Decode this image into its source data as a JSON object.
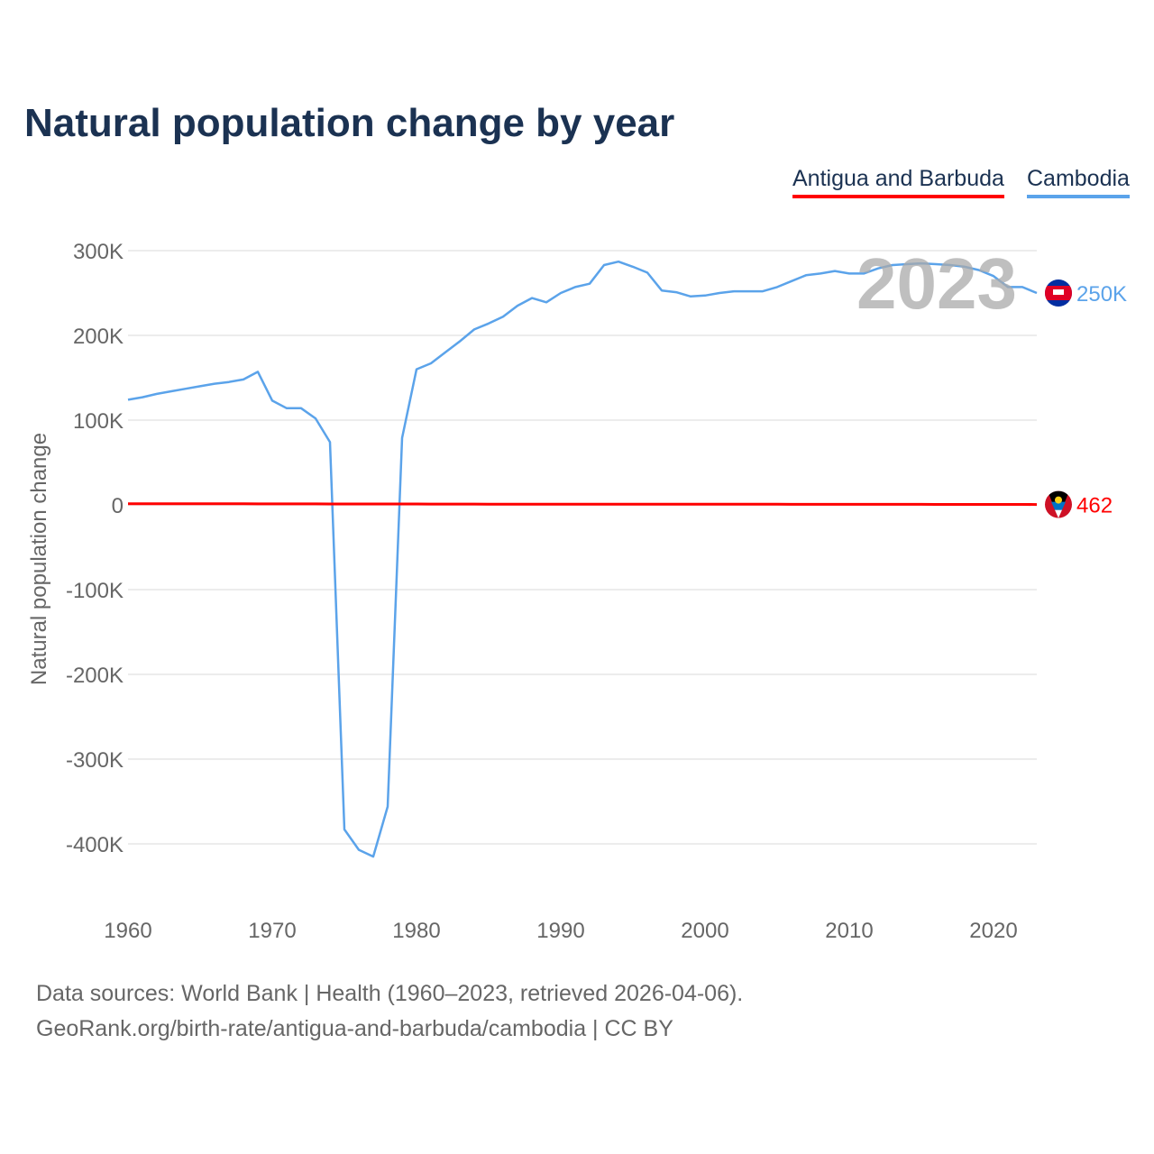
{
  "title": "Natural population change by year",
  "footer": {
    "line1": "Data sources: World Bank | Health (1960–2023, retrieved 2026-04-06).",
    "line2": "GeoRank.org/birth-rate/antigua-and-barbuda/cambodia | CC BY"
  },
  "chart_data": {
    "type": "line",
    "title": "Natural population change by year",
    "ylabel": "Natural population change",
    "xlabel": "",
    "ylim": [
      -450000,
      310000
    ],
    "xlim": [
      1960,
      2023
    ],
    "yticks": [
      300000,
      200000,
      100000,
      0,
      -100000,
      -200000,
      -300000,
      -400000
    ],
    "ytick_labels": [
      "300K",
      "200K",
      "100K",
      "0",
      "-100K",
      "-200K",
      "-300K",
      "-400K"
    ],
    "xticks": [
      1960,
      1970,
      1980,
      1990,
      2000,
      2010,
      2020
    ],
    "xtick_labels": [
      "1960",
      "1970",
      "1980",
      "1990",
      "2000",
      "2010",
      "2020"
    ],
    "grid": true,
    "legend_position": "top-right",
    "year_watermark": "2023",
    "series": [
      {
        "name": "Antigua and Barbuda",
        "color": "#ff0000",
        "end_label": "462",
        "flag": "antigua-flag-icon",
        "values": [
          1300,
          1320,
          1330,
          1340,
          1330,
          1320,
          1300,
          1280,
          1250,
          1220,
          1200,
          1180,
          1150,
          1130,
          1110,
          1100,
          1090,
          1080,
          1060,
          1050,
          1020,
          990,
          960,
          940,
          920,
          900,
          890,
          880,
          870,
          860,
          850,
          840,
          830,
          820,
          810,
          800,
          790,
          780,
          770,
          760,
          750,
          740,
          730,
          720,
          710,
          700,
          690,
          680,
          670,
          660,
          650,
          640,
          630,
          620,
          600,
          590,
          580,
          560,
          550,
          530,
          520,
          500,
          480,
          462
        ]
      },
      {
        "name": "Cambodia",
        "color": "#5ba3ea",
        "end_label": "250K",
        "flag": "cambodia-flag-icon",
        "values": [
          124000,
          127000,
          131000,
          134000,
          137000,
          140000,
          143000,
          145000,
          148000,
          157000,
          123000,
          114000,
          114000,
          102000,
          74000,
          -383000,
          -407000,
          -415000,
          -356000,
          79000,
          160000,
          167000,
          180000,
          193000,
          207000,
          214000,
          222000,
          235000,
          244000,
          239000,
          250000,
          257000,
          261000,
          283000,
          287000,
          281000,
          274000,
          253000,
          251000,
          246000,
          247000,
          250000,
          252000,
          252000,
          252000,
          257000,
          264000,
          271000,
          273000,
          276000,
          273000,
          273000,
          279000,
          283000,
          284000,
          285000,
          284000,
          283000,
          281000,
          277000,
          270000,
          257000,
          257000,
          250000
        ]
      }
    ]
  }
}
